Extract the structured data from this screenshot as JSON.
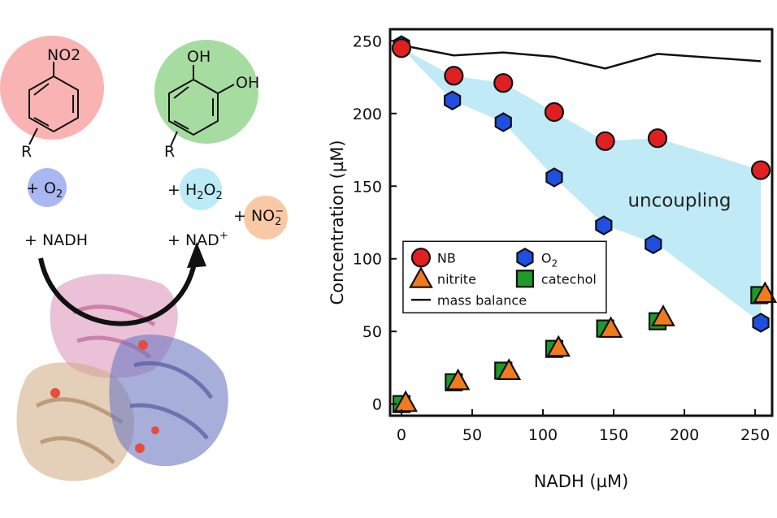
{
  "scheme": {
    "reactant_group": "NO2",
    "product_group_1": "OH",
    "product_group_2": "OH",
    "r_label": "R",
    "o2_label": "+ O",
    "o2_sub": "2",
    "nadh_label": "+ NADH",
    "h2o2_prefix": "+ H",
    "h2o2_sub1": "2",
    "h2o2_mid": "O",
    "h2o2_sub2": "2",
    "nad_label": "+ NAD",
    "nad_sup": "+",
    "nitrite_prefix": "+ NO",
    "nitrite_sub": "2",
    "nitrite_sup": "−",
    "colors": {
      "nitro_circle": "#f9b3b3",
      "catechol_circle": "#a6dca0",
      "o2_circle": "#aab8f2",
      "h2o2_circle": "#bcebf7",
      "nitrite_circle": "#f9c9a6",
      "protein_pink": "#d27aa8",
      "protein_tan": "#c9a273",
      "protein_blue": "#5561b6"
    }
  },
  "chart_data": {
    "type": "scatter",
    "xlabel": "NADH (µM)",
    "ylabel": "Concentration (µM)",
    "xlim": [
      -8,
      262
    ],
    "ylim": [
      -8,
      258
    ],
    "xticks": [
      0,
      50,
      100,
      150,
      200,
      250
    ],
    "yticks": [
      0,
      50,
      100,
      150,
      200,
      250
    ],
    "annotation": "uncoupling",
    "uncoupling_region": {
      "color": "#bfeaf6",
      "x": [
        0,
        36,
        72,
        108,
        144,
        181,
        254
      ],
      "upper": [
        245,
        226,
        221,
        201,
        181,
        183,
        161
      ],
      "lower": [
        245,
        209,
        194,
        156,
        123,
        110,
        56
      ]
    },
    "series": [
      {
        "name": "NB",
        "marker": "circle",
        "color": "#e02020",
        "x": [
          0,
          37,
          72,
          108,
          144,
          181,
          254
        ],
        "y": [
          245,
          226,
          221,
          201,
          181,
          183,
          161
        ]
      },
      {
        "name": "O",
        "name_sub": "2",
        "marker": "hexagon",
        "color": "#1f4fe0",
        "x": [
          0,
          36,
          72,
          108,
          143,
          178,
          254
        ],
        "y": [
          247,
          209,
          194,
          156,
          123,
          110,
          56
        ]
      },
      {
        "name": "nitrite",
        "marker": "triangle",
        "color": "#f07b1e",
        "x": [
          3,
          40,
          76,
          111,
          148,
          185,
          257
        ],
        "y": [
          1,
          16,
          23,
          39,
          52,
          60,
          76
        ]
      },
      {
        "name": "catechol",
        "marker": "square",
        "color": "#1e9a28",
        "x": [
          0,
          37,
          72,
          108,
          144,
          181,
          253
        ],
        "y": [
          0,
          15,
          23,
          38,
          52,
          57,
          75
        ]
      },
      {
        "name": "mass balance",
        "marker": "line",
        "color": "#111111",
        "x": [
          0,
          37,
          72,
          108,
          144,
          181,
          254
        ],
        "y": [
          247,
          240,
          242,
          239,
          231,
          241,
          236
        ]
      }
    ],
    "legend_placement": "center-left"
  }
}
